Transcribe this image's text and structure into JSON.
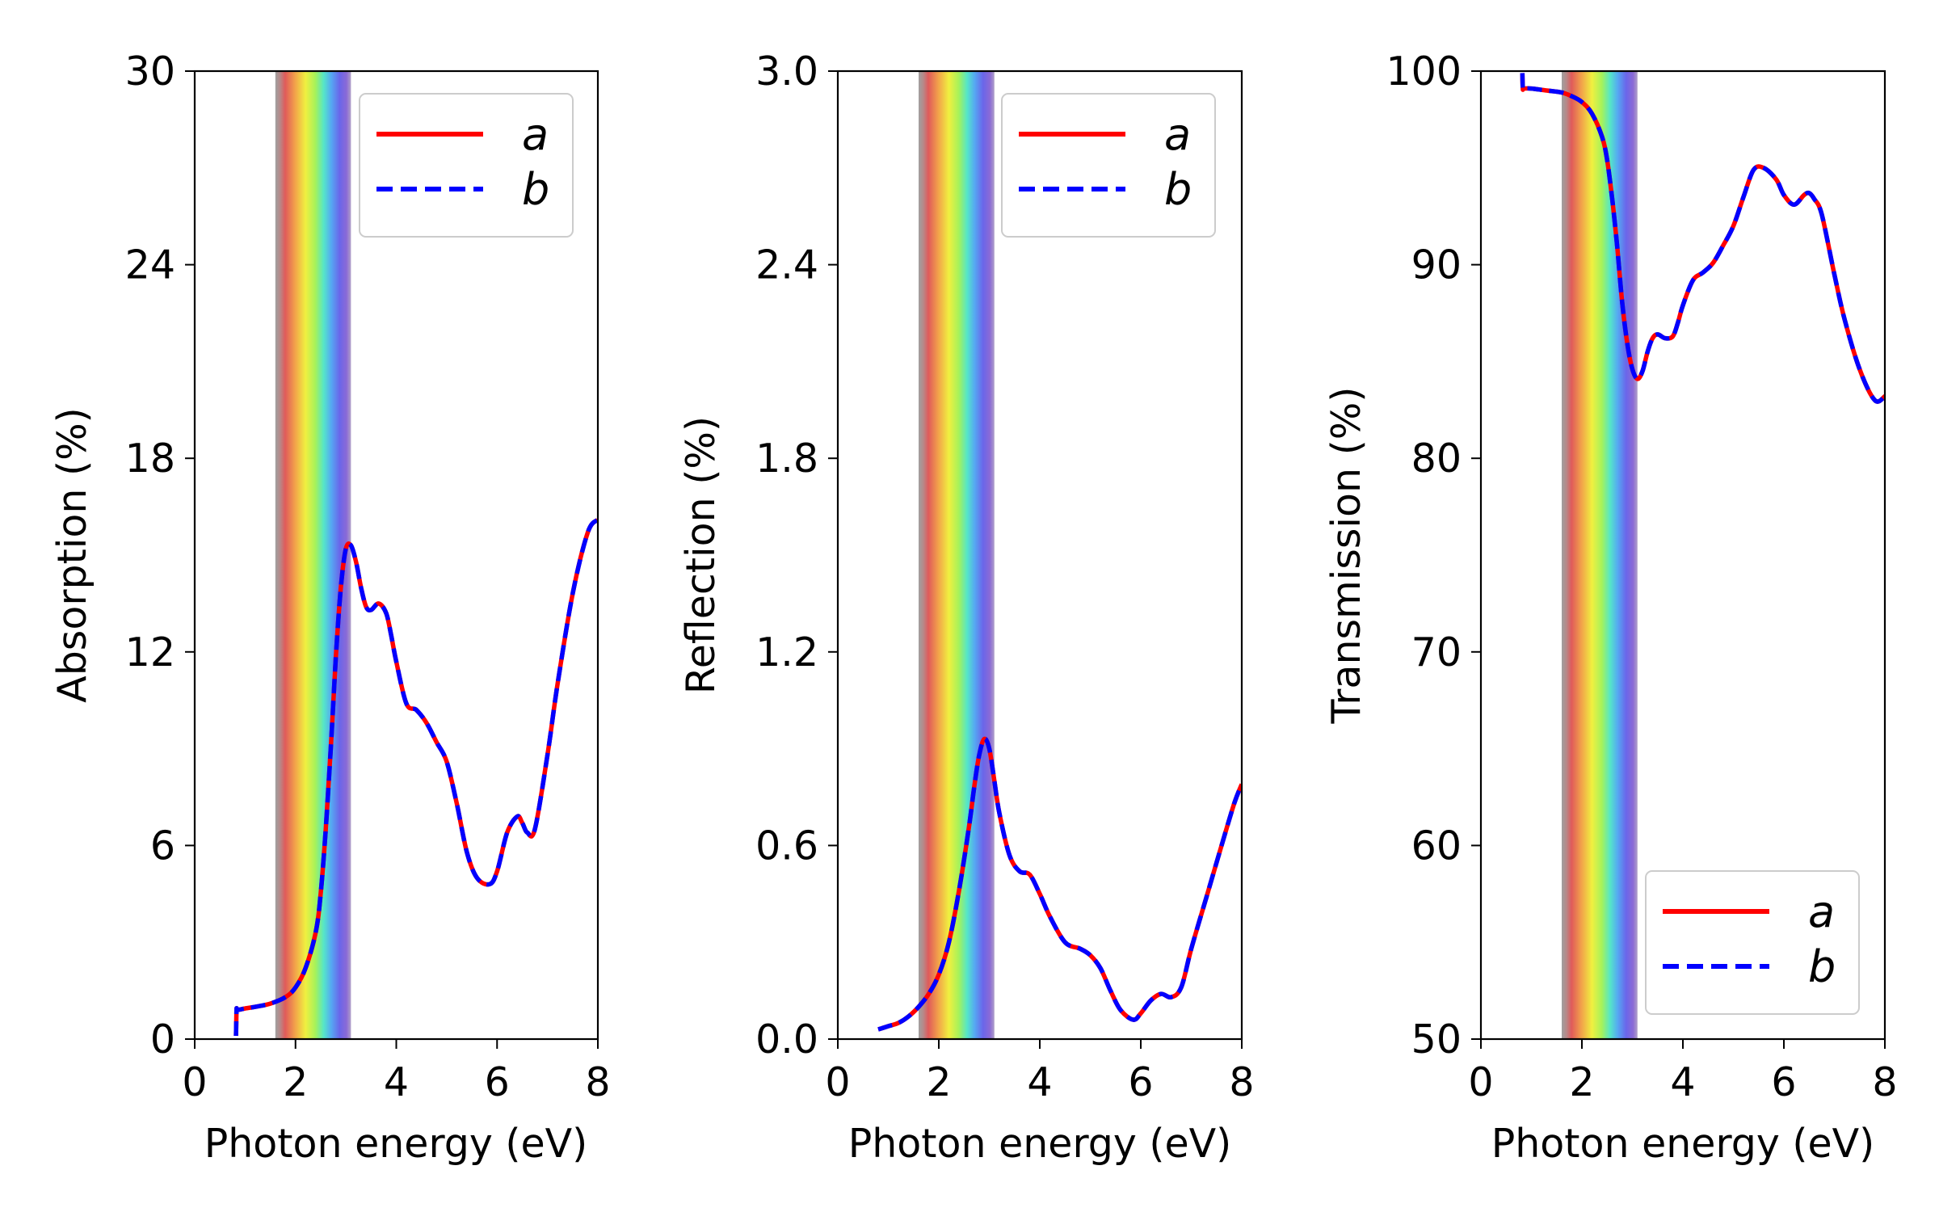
{
  "figure": {
    "band_range_ev": [
      1.6,
      3.1
    ]
  },
  "chart_data": [
    {
      "type": "line",
      "name": "absorption",
      "xlabel": "Photon energy (eV)",
      "ylabel": "Absorption (%)",
      "xlim": [
        0,
        8
      ],
      "ylim": [
        0,
        30
      ],
      "xticks": [
        "0",
        "2",
        "4",
        "6",
        "8"
      ],
      "yticks": [
        "0",
        "6",
        "12",
        "18",
        "24",
        "30"
      ],
      "legend": {
        "position": "top-right",
        "entries": [
          "a",
          "b"
        ]
      },
      "x": [
        0.82,
        0.83,
        0.85,
        1.0,
        1.2,
        1.5,
        1.8,
        2.0,
        2.2,
        2.4,
        2.5,
        2.6,
        2.7,
        2.8,
        2.9,
        3.0,
        3.1,
        3.2,
        3.3,
        3.4,
        3.5,
        3.65,
        3.8,
        3.9,
        4.0,
        4.2,
        4.4,
        4.6,
        4.8,
        5.0,
        5.2,
        5.4,
        5.6,
        5.85,
        6.0,
        6.2,
        6.4,
        6.5,
        6.6,
        6.75,
        7.0,
        7.2,
        7.5,
        7.8,
        8.0
      ],
      "series": [
        {
          "name": "a",
          "color": "#ff0000",
          "dash": "solid",
          "values": [
            0.1,
            0.9,
            0.9,
            0.95,
            1.0,
            1.1,
            1.3,
            1.6,
            2.2,
            3.3,
            4.5,
            6.5,
            9.0,
            11.8,
            14.0,
            15.2,
            15.3,
            14.8,
            14.0,
            13.4,
            13.3,
            13.5,
            13.2,
            12.5,
            11.7,
            10.4,
            10.2,
            9.8,
            9.2,
            8.6,
            7.3,
            5.8,
            5.0,
            4.8,
            5.2,
            6.4,
            6.9,
            6.7,
            6.4,
            6.5,
            8.8,
            11.0,
            13.8,
            15.7,
            16.1
          ]
        },
        {
          "name": "b",
          "color": "#0000ff",
          "dash": "dashed",
          "values": [
            0.1,
            0.9,
            0.9,
            0.95,
            1.0,
            1.1,
            1.3,
            1.6,
            2.2,
            3.3,
            4.5,
            6.5,
            9.0,
            11.8,
            14.0,
            15.2,
            15.3,
            14.8,
            14.0,
            13.4,
            13.3,
            13.5,
            13.2,
            12.5,
            11.7,
            10.4,
            10.2,
            9.8,
            9.2,
            8.6,
            7.3,
            5.8,
            5.0,
            4.8,
            5.2,
            6.4,
            6.9,
            6.7,
            6.4,
            6.5,
            8.8,
            11.0,
            13.8,
            15.7,
            16.1
          ]
        }
      ]
    },
    {
      "type": "line",
      "name": "reflection",
      "xlabel": "Photon energy (eV)",
      "ylabel": "Reflection (%)",
      "xlim": [
        0,
        8
      ],
      "ylim": [
        0,
        3.0
      ],
      "xticks": [
        "0",
        "2",
        "4",
        "6",
        "8"
      ],
      "yticks": [
        "0.0",
        "0.6",
        "1.2",
        "1.8",
        "2.4",
        "3.0"
      ],
      "legend": {
        "position": "top-right",
        "entries": [
          "a",
          "b"
        ]
      },
      "x": [
        0.8,
        1.0,
        1.2,
        1.4,
        1.6,
        1.8,
        2.0,
        2.2,
        2.4,
        2.6,
        2.7,
        2.8,
        2.9,
        3.0,
        3.1,
        3.2,
        3.4,
        3.6,
        3.8,
        4.0,
        4.2,
        4.5,
        4.8,
        5.0,
        5.2,
        5.4,
        5.6,
        5.85,
        6.0,
        6.2,
        6.4,
        6.6,
        6.8,
        7.0,
        7.3,
        7.6,
        7.85,
        8.0
      ],
      "series": [
        {
          "name": "a",
          "color": "#ff0000",
          "dash": "solid",
          "values": [
            0.03,
            0.04,
            0.05,
            0.07,
            0.1,
            0.14,
            0.2,
            0.3,
            0.46,
            0.66,
            0.78,
            0.88,
            0.93,
            0.9,
            0.8,
            0.7,
            0.57,
            0.52,
            0.51,
            0.45,
            0.38,
            0.3,
            0.28,
            0.26,
            0.22,
            0.15,
            0.09,
            0.06,
            0.08,
            0.12,
            0.14,
            0.13,
            0.16,
            0.28,
            0.44,
            0.6,
            0.73,
            0.79
          ]
        },
        {
          "name": "b",
          "color": "#0000ff",
          "dash": "dashed",
          "values": [
            0.03,
            0.04,
            0.05,
            0.07,
            0.1,
            0.14,
            0.2,
            0.3,
            0.46,
            0.66,
            0.78,
            0.88,
            0.93,
            0.9,
            0.8,
            0.7,
            0.57,
            0.52,
            0.51,
            0.45,
            0.38,
            0.3,
            0.28,
            0.26,
            0.22,
            0.15,
            0.09,
            0.06,
            0.08,
            0.12,
            0.14,
            0.13,
            0.16,
            0.28,
            0.44,
            0.6,
            0.73,
            0.79
          ]
        }
      ]
    },
    {
      "type": "line",
      "name": "transmission",
      "xlabel": "Photon energy (eV)",
      "ylabel": "Transmission (%)",
      "xlim": [
        0,
        8
      ],
      "ylim": [
        50,
        100
      ],
      "xticks": [
        "0",
        "2",
        "4",
        "6",
        "8"
      ],
      "yticks": [
        "50",
        "60",
        "70",
        "80",
        "90",
        "100"
      ],
      "legend": {
        "position": "bottom-right",
        "entries": [
          "a",
          "b"
        ]
      },
      "x": [
        0.82,
        0.83,
        0.85,
        1.0,
        1.3,
        1.6,
        1.8,
        2.0,
        2.2,
        2.4,
        2.5,
        2.6,
        2.7,
        2.8,
        2.9,
        3.0,
        3.1,
        3.2,
        3.3,
        3.4,
        3.5,
        3.65,
        3.8,
        3.9,
        4.0,
        4.2,
        4.4,
        4.6,
        4.8,
        5.0,
        5.2,
        5.4,
        5.6,
        5.85,
        6.0,
        6.2,
        6.4,
        6.5,
        6.6,
        6.75,
        7.0,
        7.2,
        7.5,
        7.8,
        8.0
      ],
      "series": [
        {
          "name": "a",
          "color": "#ff0000",
          "dash": "solid",
          "values": [
            99.9,
            99.1,
            99.1,
            99.1,
            99.0,
            98.9,
            98.7,
            98.4,
            97.8,
            96.6,
            95.4,
            93.4,
            90.9,
            88.0,
            85.9,
            84.6,
            84.1,
            84.5,
            85.5,
            86.2,
            86.4,
            86.2,
            86.3,
            87.0,
            87.9,
            89.2,
            89.6,
            90.1,
            91.0,
            92.0,
            93.5,
            94.9,
            95.0,
            94.4,
            93.6,
            93.1,
            93.6,
            93.7,
            93.4,
            92.6,
            89.5,
            87.2,
            84.6,
            83.0,
            83.2
          ]
        },
        {
          "name": "b",
          "color": "#0000ff",
          "dash": "dashed",
          "values": [
            99.9,
            99.1,
            99.1,
            99.1,
            99.0,
            98.9,
            98.7,
            98.4,
            97.8,
            96.6,
            95.4,
            93.4,
            90.9,
            88.0,
            85.9,
            84.6,
            84.1,
            84.5,
            85.5,
            86.2,
            86.4,
            86.2,
            86.3,
            87.0,
            87.9,
            89.2,
            89.6,
            90.1,
            91.0,
            92.0,
            93.5,
            94.9,
            95.0,
            94.4,
            93.6,
            93.1,
            93.6,
            93.7,
            93.4,
            92.6,
            89.5,
            87.2,
            84.6,
            83.0,
            83.2
          ]
        }
      ]
    }
  ]
}
